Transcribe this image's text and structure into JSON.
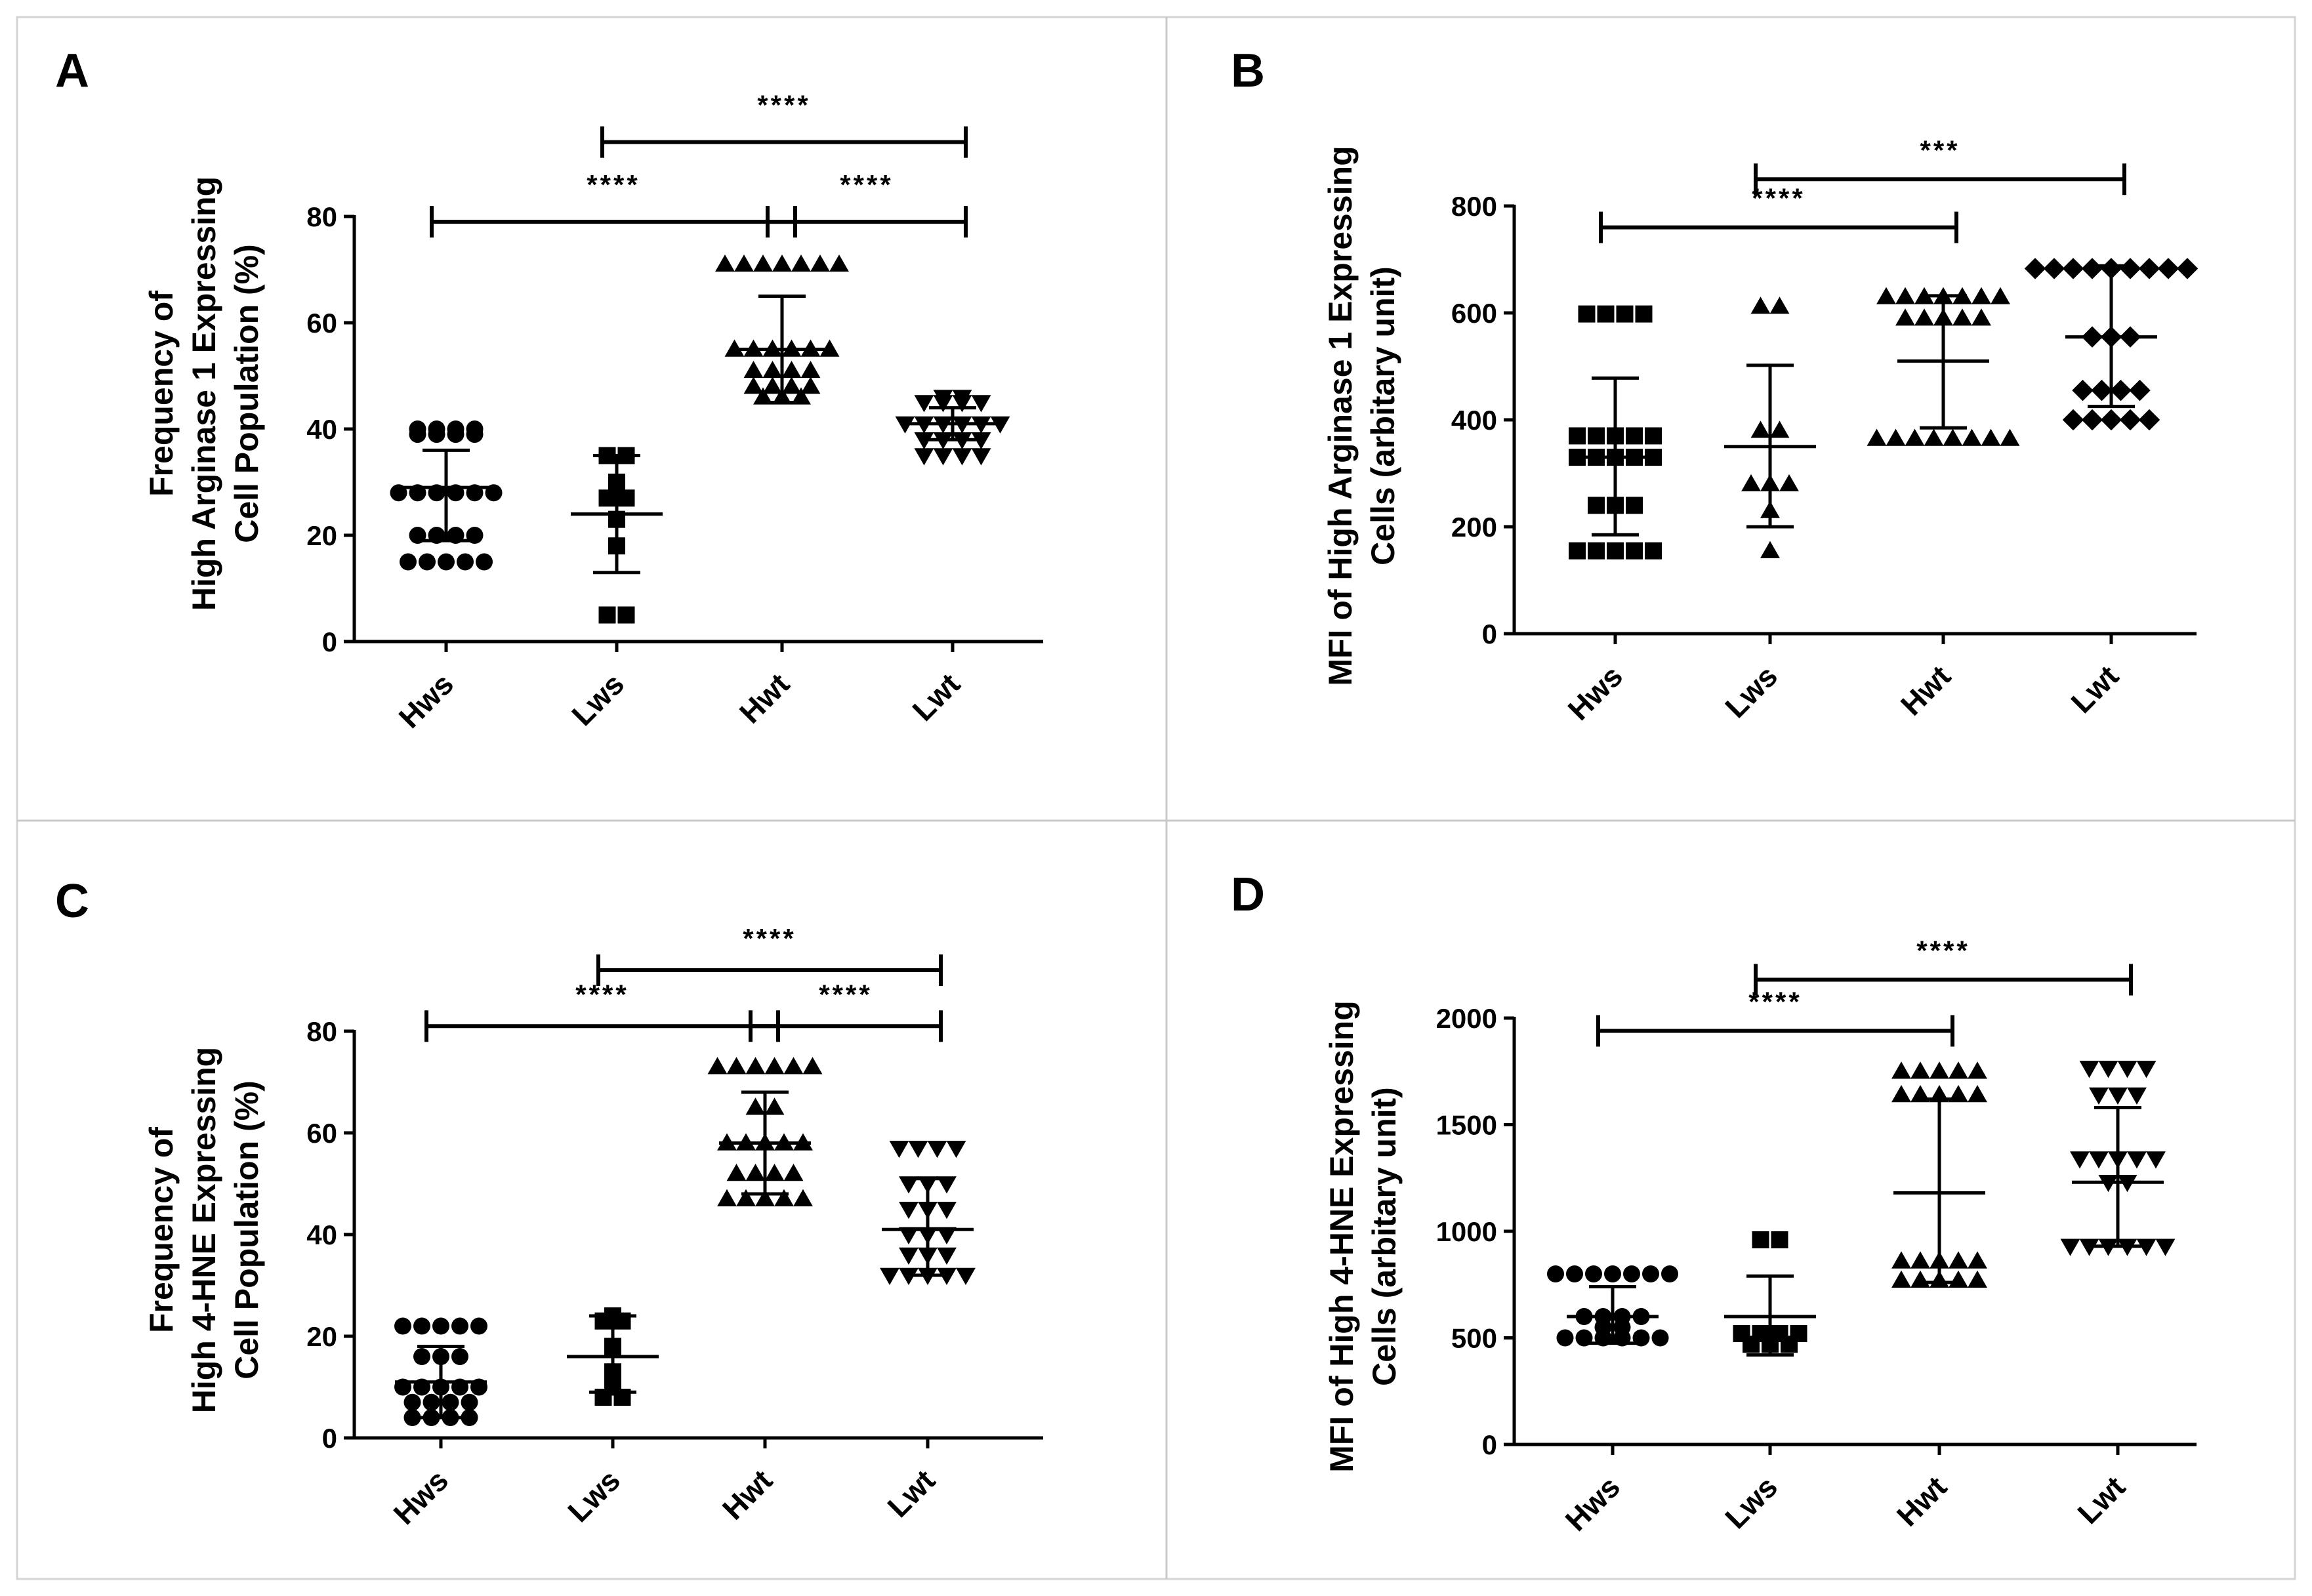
{
  "figure": {
    "description_visible": "",
    "panels": [
      "A",
      "B",
      "C",
      "D"
    ]
  },
  "chart_data": [
    {
      "id": "A",
      "type": "scatter",
      "title": "A",
      "ylabel_lines": [
        "Frequency of",
        "High Arginase 1 Expressing",
        "Cell Population (%)"
      ],
      "ylim": [
        0,
        80
      ],
      "yticks": [
        "0",
        "20",
        "40",
        "60",
        "80"
      ],
      "ytick_values": [
        0,
        20,
        40,
        60,
        80
      ],
      "categories": [
        "Hws",
        "Lws",
        "Hwt",
        "Lwt"
      ],
      "markers": [
        "circle",
        "square",
        "triangle-up",
        "triangle-down"
      ],
      "series": [
        {
          "name": "Hws",
          "mean": 29,
          "sd_low": 19,
          "sd_high": 36,
          "values": [
            40,
            40,
            40,
            40,
            39,
            39,
            39,
            39,
            28,
            28,
            28,
            28,
            28,
            28,
            20,
            20,
            20,
            20,
            15,
            15,
            15,
            15,
            15
          ]
        },
        {
          "name": "Lws",
          "mean": 24,
          "sd_low": 13,
          "sd_high": 35,
          "values": [
            35,
            35,
            30,
            27,
            27,
            23,
            18,
            5,
            5
          ]
        },
        {
          "name": "Hwt",
          "mean": 55,
          "sd_low": 45,
          "sd_high": 65,
          "values": [
            71,
            71,
            71,
            71,
            71,
            71,
            71,
            55,
            55,
            55,
            55,
            55,
            55,
            51,
            51,
            51,
            51,
            48,
            48,
            48,
            48,
            46,
            46,
            46
          ]
        },
        {
          "name": "Lwt",
          "mean": 41,
          "sd_low": 38,
          "sd_high": 44,
          "values": [
            46,
            46,
            45,
            45,
            45,
            45,
            41,
            41,
            41,
            41,
            41,
            41,
            38,
            38,
            38,
            38,
            35,
            35,
            35,
            35
          ]
        }
      ],
      "significance": [
        {
          "from": "Lws",
          "to": "Lwt",
          "label": "****",
          "y": 94
        },
        {
          "from": "Hws",
          "to": "Hwt",
          "label": "****",
          "y": 79
        },
        {
          "from": "Hwt",
          "to": "Lwt",
          "label": "****",
          "y": 79
        }
      ]
    },
    {
      "id": "B",
      "type": "scatter",
      "title": "B",
      "ylabel_lines": [
        "MFI of High Arginase 1 Expressing",
        "Cells (arbitary unit)"
      ],
      "ylim": [
        0,
        800
      ],
      "yticks": [
        "0",
        "200",
        "400",
        "600",
        "800"
      ],
      "ytick_values": [
        0,
        200,
        400,
        600,
        800
      ],
      "categories": [
        "Hws",
        "Lws",
        "Hwt",
        "Lwt"
      ],
      "markers": [
        "square",
        "triangle-up",
        "triangle-up",
        "diamond"
      ],
      "series": [
        {
          "name": "Hws",
          "mean": 330,
          "sd_low": 185,
          "sd_high": 478,
          "values": [
            598,
            598,
            598,
            598,
            370,
            370,
            370,
            370,
            370,
            330,
            330,
            330,
            330,
            330,
            240,
            240,
            240,
            155,
            155,
            155,
            155,
            155
          ]
        },
        {
          "name": "Lws",
          "mean": 350,
          "sd_low": 200,
          "sd_high": 502,
          "values": [
            612,
            612,
            380,
            380,
            280,
            280,
            280,
            230,
            155
          ]
        },
        {
          "name": "Hwt",
          "mean": 510,
          "sd_low": 385,
          "sd_high": 632,
          "values": [
            630,
            630,
            630,
            630,
            630,
            630,
            630,
            590,
            590,
            590,
            590,
            590,
            365,
            365,
            365,
            365,
            365,
            365,
            365,
            365
          ]
        },
        {
          "name": "Lwt",
          "mean": 555,
          "sd_low": 425,
          "sd_high": 688,
          "values": [
            683,
            683,
            683,
            683,
            683,
            683,
            683,
            683,
            683,
            555,
            555,
            555,
            455,
            455,
            455,
            455,
            400,
            400,
            400,
            400,
            400
          ]
        }
      ],
      "significance": [
        {
          "from": "Lws",
          "to": "Lwt",
          "label": "***",
          "y": 850
        },
        {
          "from": "Hws",
          "to": "Hwt",
          "label": "****",
          "y": 760
        }
      ]
    },
    {
      "id": "C",
      "type": "scatter",
      "title": "C",
      "ylabel_lines": [
        "Frequency of",
        "High 4-HNE Expressing",
        "Cell Population (%)"
      ],
      "ylim": [
        0,
        80
      ],
      "yticks": [
        "0",
        "20",
        "40",
        "60",
        "80"
      ],
      "ytick_values": [
        0,
        20,
        40,
        60,
        80
      ],
      "categories": [
        "Hws",
        "Lws",
        "Hwt",
        "Lwt"
      ],
      "markers": [
        "circle",
        "square",
        "triangle-up",
        "triangle-down"
      ],
      "series": [
        {
          "name": "Hws",
          "mean": 11,
          "sd_low": 4,
          "sd_high": 18,
          "values": [
            22,
            22,
            22,
            22,
            22,
            16,
            16,
            16,
            10,
            10,
            10,
            10,
            10,
            7,
            7,
            7,
            7,
            4,
            4,
            4,
            4
          ]
        },
        {
          "name": "Lws",
          "mean": 16,
          "sd_low": 9,
          "sd_high": 24,
          "values": [
            24,
            23,
            23,
            18,
            13,
            11,
            10,
            8,
            8
          ]
        },
        {
          "name": "Hwt",
          "mean": 58,
          "sd_low": 48,
          "sd_high": 68,
          "values": [
            73,
            73,
            73,
            73,
            73,
            73,
            65,
            65,
            58,
            58,
            58,
            58,
            58,
            52,
            52,
            52,
            52,
            47,
            47,
            47,
            47,
            47
          ]
        },
        {
          "name": "Lwt",
          "mean": 41,
          "sd_low": 32,
          "sd_high": 51,
          "values": [
            57,
            57,
            57,
            57,
            50,
            50,
            50,
            45,
            45,
            45,
            40,
            40,
            40,
            36,
            36,
            36,
            32,
            32,
            32,
            32,
            32
          ]
        }
      ],
      "significance": [
        {
          "from": "Lws",
          "to": "Lwt",
          "label": "****",
          "y": 92
        },
        {
          "from": "Hws",
          "to": "Hwt",
          "label": "****",
          "y": 81
        },
        {
          "from": "Hwt",
          "to": "Lwt",
          "label": "****",
          "y": 81
        }
      ]
    },
    {
      "id": "D",
      "type": "scatter",
      "title": "D",
      "ylabel_lines": [
        "MFI of High 4-HNE Expressing",
        "Cells (arbitary unit)"
      ],
      "ylim": [
        0,
        2000
      ],
      "yticks": [
        "0",
        "500",
        "1000",
        "1500",
        "2000"
      ],
      "ytick_values": [
        0,
        500,
        1000,
        1500,
        2000
      ],
      "categories": [
        "Hws",
        "Lws",
        "Hwt",
        "Lwt"
      ],
      "markers": [
        "circle",
        "square",
        "triangle-up",
        "triangle-down"
      ],
      "series": [
        {
          "name": "Hws",
          "mean": 600,
          "sd_low": 475,
          "sd_high": 740,
          "values": [
            800,
            800,
            800,
            800,
            800,
            800,
            800,
            600,
            600,
            600,
            600,
            550,
            550,
            500,
            500,
            500,
            500,
            500,
            500
          ]
        },
        {
          "name": "Lws",
          "mean": 600,
          "sd_low": 420,
          "sd_high": 790,
          "values": [
            960,
            960,
            520,
            520,
            520,
            520,
            470,
            470,
            470
          ]
        },
        {
          "name": "Hwt",
          "mean": 1180,
          "sd_low": 760,
          "sd_high": 1620,
          "values": [
            1750,
            1750,
            1750,
            1750,
            1750,
            1640,
            1640,
            1640,
            1640,
            1640,
            860,
            860,
            860,
            860,
            860,
            770,
            770,
            770,
            770,
            770
          ]
        },
        {
          "name": "Lwt",
          "mean": 1230,
          "sd_low": 930,
          "sd_high": 1580,
          "values": [
            1765,
            1765,
            1765,
            1765,
            1640,
            1640,
            1640,
            1340,
            1340,
            1340,
            1340,
            1340,
            1230,
            1230,
            930,
            930,
            930,
            930,
            930,
            930
          ]
        }
      ],
      "significance": [
        {
          "from": "Lws",
          "to": "Lwt",
          "label": "****",
          "y": 2180
        },
        {
          "from": "Hws",
          "to": "Hwt",
          "label": "****",
          "y": 1940
        }
      ]
    }
  ]
}
